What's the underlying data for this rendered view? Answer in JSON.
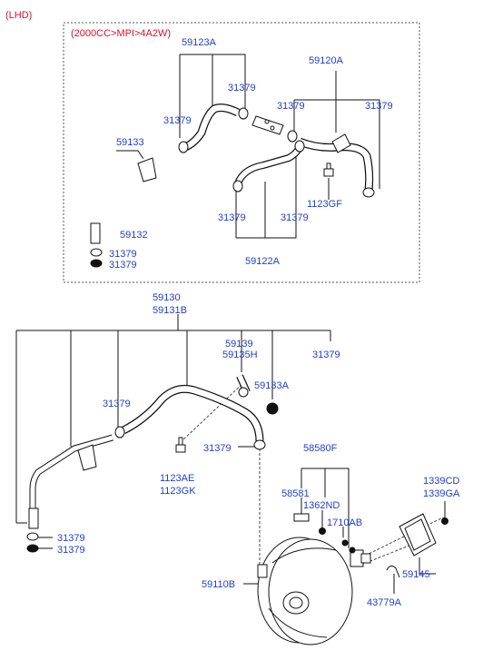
{
  "header": {
    "drive_side": "(LHD)",
    "variant": "(2000CC>MPI>4A2W)"
  },
  "colors": {
    "label": "#1f3fd1",
    "header": "#e0102a",
    "line": "#111111"
  },
  "upper_labels": {
    "hose_59123a": "59123A",
    "hose_59120a": "59120A",
    "clamp_a": "31379",
    "clamp_b": "31379",
    "clamp_c": "31379",
    "clamp_d": "31379",
    "hose_59133": "59133",
    "bolt_1123gf": "1123GF",
    "clamp_e": "31379",
    "clamp_f": "31379",
    "hose_59132": "59132",
    "clamp_g": "31379",
    "clamp_h": "31379",
    "hose_59122a": "59122A"
  },
  "lower_labels": {
    "hose_59130": "59130",
    "hose_59131b": "59131B",
    "hose_59139": "59139",
    "hose_59135h": "59135H",
    "clamp_top": "31379",
    "hose_59133a": "59133A",
    "clamp_mid": "31379",
    "clamp_low": "31379",
    "bolt_1123ae": "1123AE",
    "bolt_1123gk": "1123GK",
    "cylinder_58580f": "58580F",
    "part_58581": "58581",
    "part_1362nd": "1362ND",
    "part_1710ab": "1710AB",
    "bolt_1339cd": "1339CD",
    "bolt_1339ga": "1339GA",
    "clamp_end_a": "31379",
    "clamp_end_b": "31379",
    "booster_59110b": "59110B",
    "gasket_59145": "59145",
    "pin_43779a": "43779A"
  }
}
